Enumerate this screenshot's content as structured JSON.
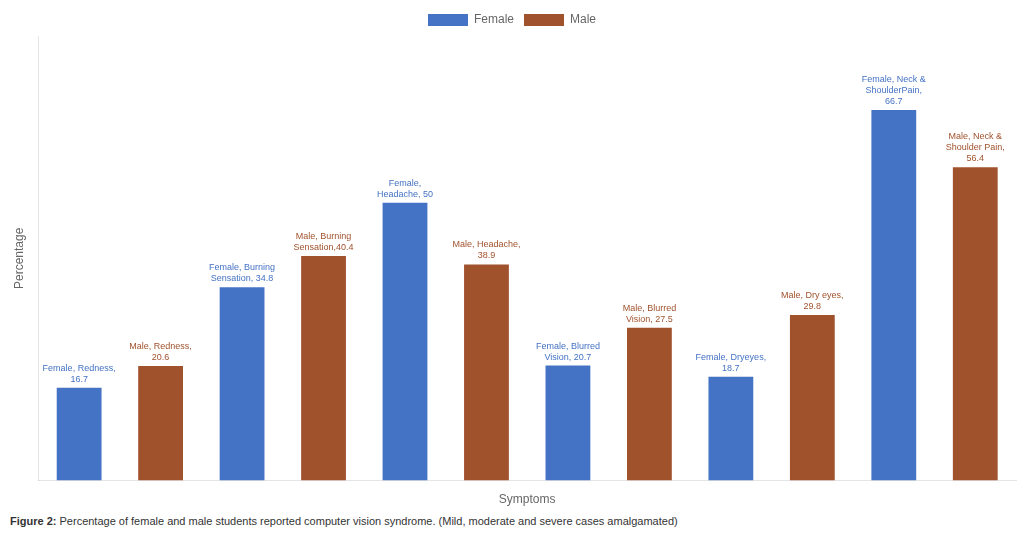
{
  "chart_data": {
    "type": "bar",
    "categories": [
      "Redness",
      "Burning Sensation",
      "Headache",
      "Blurred Vision",
      "Dry eyes",
      "Neck & Shoulder Pain"
    ],
    "series": [
      {
        "name": "Female",
        "color": "#4472C4",
        "values": [
          16.7,
          34.8,
          50.0,
          20.7,
          18.7,
          66.7
        ]
      },
      {
        "name": "Male",
        "color": "#A0522D",
        "values": [
          20.6,
          40.4,
          38.9,
          27.5,
          29.8,
          56.4
        ]
      }
    ],
    "xlabel": "Symptoms",
    "ylabel": "Percentage",
    "ylim": [
      0,
      80
    ],
    "yticks": [],
    "tick_labels": false,
    "grid": false,
    "legend": "top",
    "annotations": [
      {
        "text": "Female, Redness,\n16.7",
        "series": "Female",
        "category": "Redness"
      },
      {
        "text": "Female, Burning\nSensation, 34.8",
        "series": "Female",
        "category": "Burning Sensation"
      },
      {
        "text": "Female,\nHeadache, 50",
        "series": "Female",
        "category": "Headache"
      },
      {
        "text": "Female, Blurred\nVision, 20.7",
        "series": "Female",
        "category": "Blurred Vision"
      },
      {
        "text": "Female, Dryeyes,\n18.7",
        "series": "Female",
        "category": "Dry eyes"
      },
      {
        "text": "Female, Neck &\nShoulderPain,\n66.7",
        "series": "Female",
        "category": "Neck & Shoulder Pain"
      },
      {
        "text": "Male, Redness,\n20.6",
        "series": "Male",
        "category": "Redness"
      },
      {
        "text": "Male, Burning\nSensation,40.4",
        "series": "Male",
        "category": "Burning Sensation"
      },
      {
        "text": "Male, Headache,\n38.9",
        "series": "Male",
        "category": "Headache"
      },
      {
        "text": "Male, Blurred\nVision, 27.5",
        "series": "Male",
        "category": "Blurred Vision"
      },
      {
        "text": "Male, Dry eyes,\n29.8",
        "series": "Male",
        "category": "Dry eyes"
      },
      {
        "text": "Male, Neck &\nShoulder Pain,\n56.4",
        "series": "Male",
        "category": "Neck & Shoulder Pain"
      }
    ],
    "caption": "Figure 2: Percentage of female and male students reported computer vision syndrome. (Mild, moderate and severe cases amalgamated)"
  }
}
